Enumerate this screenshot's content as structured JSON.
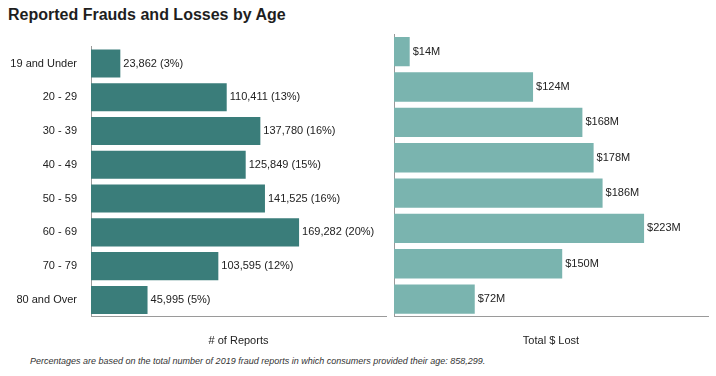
{
  "title": "Reported Frauds and Losses by Age",
  "note": "Percentages are based on the total number of 2019 fraud reports in which consumers provided their age:  858,299.",
  "chart_data": [
    {
      "type": "bar",
      "orientation": "horizontal",
      "categories": [
        "19 and Under",
        "20 - 29",
        "30 - 39",
        "40 - 49",
        "50 - 59",
        "60 - 69",
        "70 - 79",
        "80 and Over"
      ],
      "values": [
        23862,
        110411,
        137780,
        125849,
        141525,
        169282,
        103595,
        45995
      ],
      "value_labels": [
        "23,862 (3%)",
        "110,411 (13%)",
        "137,780 (16%)",
        "125,849 (15%)",
        "141,525 (16%)",
        "169,282 (20%)",
        "103,595 (12%)",
        "45,995 (5%)"
      ],
      "color": "#3a7d7a",
      "x_label": "# of Reports",
      "xlim": [
        0,
        240000
      ],
      "grid": false,
      "data_labels": true,
      "tick_labels": "y"
    },
    {
      "type": "bar",
      "orientation": "horizontal",
      "categories": [
        "19 and Under",
        "20 - 29",
        "30 - 39",
        "40 - 49",
        "50 - 59",
        "60 - 69",
        "70 - 79",
        "80 and Over"
      ],
      "values": [
        14,
        124,
        168,
        178,
        186,
        223,
        150,
        72
      ],
      "value_labels": [
        "$14M",
        "$124M",
        "$168M",
        "$178M",
        "$186M",
        "$223M",
        "$150M",
        "$72M"
      ],
      "color": "#7ab4af",
      "x_label": "Total $ Lost",
      "xlim": [
        0,
        280
      ],
      "grid": false,
      "data_labels": true,
      "tick_labels": false
    }
  ]
}
